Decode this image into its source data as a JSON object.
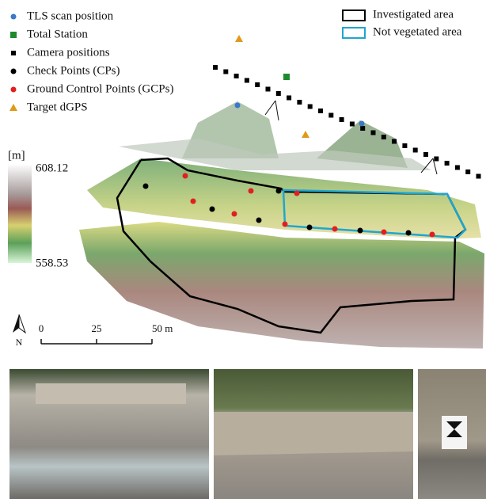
{
  "legend": {
    "items": [
      {
        "label": "TLS scan position",
        "color": "#3a78c8"
      },
      {
        "label": "Total Station",
        "color": "#1e8a2e"
      },
      {
        "label": "Camera positions",
        "color": "#000000"
      },
      {
        "label": "Check Points (CPs)",
        "color": "#000000"
      },
      {
        "label": "Ground Control Points (GCPs)",
        "color": "#e02020"
      },
      {
        "label": "Target dGPS",
        "color": "#e09a1a"
      }
    ],
    "areas": [
      {
        "label": "Investigated area",
        "color": "#000000"
      },
      {
        "label": "Not vegetated area",
        "color": "#1fa6cf"
      }
    ]
  },
  "colorbar": {
    "unit": "[m]",
    "max": 608.12,
    "min": 558.53
  },
  "scale_bar": {
    "ticks": [
      0,
      25,
      {
        "value": 50,
        "label": "50 m"
      }
    ]
  },
  "north": "N"
}
